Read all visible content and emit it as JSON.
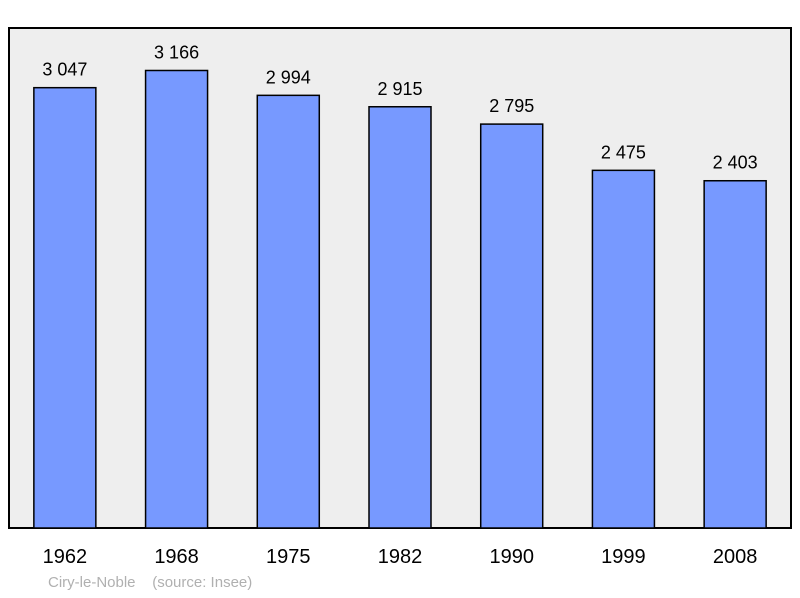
{
  "chart_data": {
    "type": "bar",
    "categories": [
      "1962",
      "1968",
      "1975",
      "1982",
      "1990",
      "1999",
      "2008"
    ],
    "values": [
      3047,
      3166,
      2994,
      2915,
      2795,
      2475,
      2403
    ],
    "value_labels": [
      "3 047",
      "3 166",
      "2 994",
      "2 915",
      "2 795",
      "2 475",
      "2 403"
    ],
    "ylim": [
      0,
      3460
    ],
    "grid": false,
    "colors": {
      "bar": "#7799ff",
      "plot_background": "#eeeeee",
      "frame": "#000000"
    }
  },
  "caption": {
    "place": "Ciry-le-Noble",
    "source": "(source: Insee)"
  }
}
